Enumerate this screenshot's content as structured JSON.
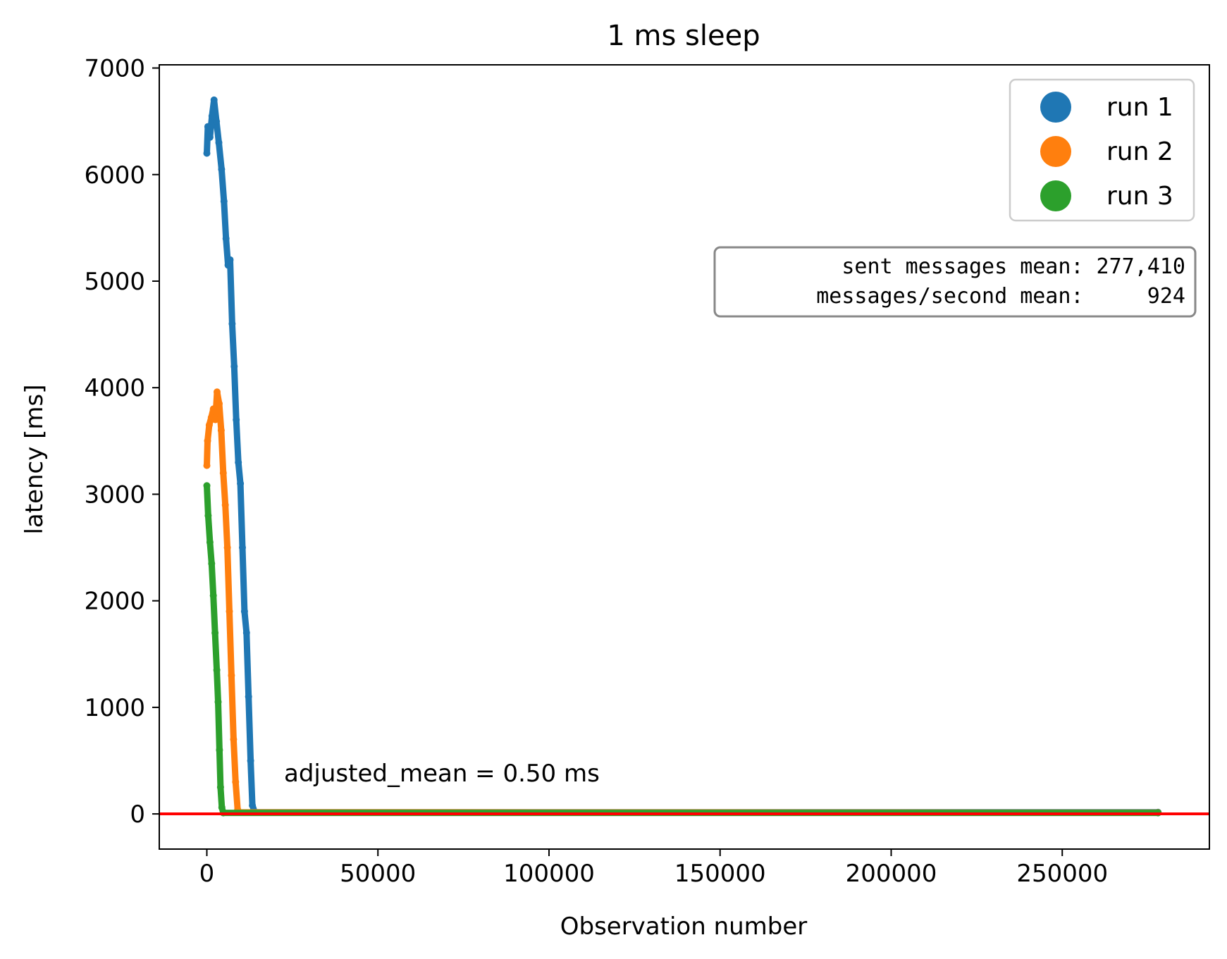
{
  "chart_data": {
    "type": "scatter",
    "title": "1 ms sleep",
    "xlabel": "Observation number",
    "ylabel": "latency [ms]",
    "xlim": [
      -13900,
      293000
    ],
    "ylim": [
      -330,
      7030
    ],
    "xticks": [
      0,
      50000,
      100000,
      150000,
      200000,
      250000
    ],
    "xtick_labels": [
      "0",
      "50000",
      "100000",
      "150000",
      "200000",
      "250000"
    ],
    "yticks": [
      0,
      1000,
      2000,
      3000,
      4000,
      5000,
      6000,
      7000
    ],
    "ytick_labels": [
      "0",
      "1000",
      "2000",
      "3000",
      "4000",
      "5000",
      "6000",
      "7000"
    ],
    "grid": false,
    "legend_position": "top-right",
    "series": [
      {
        "name": "run 1",
        "color": "#1f77b4",
        "points": [
          [
            0,
            6200
          ],
          [
            300,
            6450
          ],
          [
            900,
            6350
          ],
          [
            1500,
            6550
          ],
          [
            2100,
            6700
          ],
          [
            2800,
            6500
          ],
          [
            3500,
            6300
          ],
          [
            4300,
            6050
          ],
          [
            5000,
            5750
          ],
          [
            5600,
            5400
          ],
          [
            6200,
            5150
          ],
          [
            6800,
            5200
          ],
          [
            7400,
            4600
          ],
          [
            8000,
            4200
          ],
          [
            8600,
            3700
          ],
          [
            9200,
            3300
          ],
          [
            9800,
            3100
          ],
          [
            10400,
            2500
          ],
          [
            11000,
            1900
          ],
          [
            11600,
            1700
          ],
          [
            12200,
            1100
          ],
          [
            12800,
            500
          ],
          [
            13300,
            80
          ],
          [
            14000,
            15
          ],
          [
            278000,
            15
          ]
        ]
      },
      {
        "name": "run 2",
        "color": "#ff7f0e",
        "points": [
          [
            0,
            3270
          ],
          [
            200,
            3500
          ],
          [
            700,
            3650
          ],
          [
            1300,
            3720
          ],
          [
            1900,
            3800
          ],
          [
            2500,
            3700
          ],
          [
            3000,
            3960
          ],
          [
            3600,
            3850
          ],
          [
            4200,
            3600
          ],
          [
            4800,
            3200
          ],
          [
            5400,
            2900
          ],
          [
            6000,
            2500
          ],
          [
            6600,
            1900
          ],
          [
            7200,
            1300
          ],
          [
            7800,
            700
          ],
          [
            8400,
            300
          ],
          [
            9000,
            40
          ],
          [
            9400,
            15
          ],
          [
            278000,
            12
          ]
        ]
      },
      {
        "name": "run 3",
        "color": "#2ca02c",
        "points": [
          [
            0,
            3080
          ],
          [
            400,
            2800
          ],
          [
            900,
            2550
          ],
          [
            1400,
            2350
          ],
          [
            1900,
            2050
          ],
          [
            2400,
            1700
          ],
          [
            2900,
            1350
          ],
          [
            3300,
            1050
          ],
          [
            3700,
            600
          ],
          [
            4000,
            250
          ],
          [
            4400,
            60
          ],
          [
            4800,
            10
          ],
          [
            278000,
            10
          ]
        ]
      }
    ],
    "reference_line": {
      "y": 0.5,
      "color": "#ff0000"
    },
    "annotation": "adjusted_mean = 0.50 ms",
    "stats_box": {
      "line1": "  sent messages mean: 277,410",
      "line2": "messages/second mean:     924"
    }
  }
}
